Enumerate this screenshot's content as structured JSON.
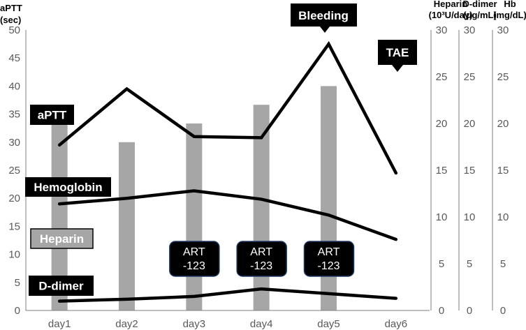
{
  "chart_data": {
    "type": "bar+line",
    "categories": [
      "day1",
      "day2",
      "day3",
      "day4",
      "day5",
      "day6"
    ],
    "axes": {
      "left": {
        "label_line1": "aPTT",
        "label_line2": "(sec)",
        "range": [
          0,
          50
        ],
        "ticks": [
          "0",
          "5",
          "10",
          "15",
          "20",
          "25",
          "30",
          "35",
          "40",
          "45",
          "50"
        ]
      },
      "right1": {
        "label_line1": "Heparin",
        "label_line2": "(10³U/day)",
        "range": [
          0,
          30
        ],
        "ticks": [
          "0",
          "5",
          "10",
          "15",
          "20",
          "25",
          "30"
        ]
      },
      "right2": {
        "label_line1": "D-dimer",
        "label_line2": "(μg/mL)",
        "range": [
          0,
          30
        ],
        "ticks": [
          "0",
          "5",
          "10",
          "15",
          "20",
          "25",
          "30"
        ]
      },
      "right3": {
        "label_line1": "Hb",
        "label_line2": "(mg/dL)",
        "range": [
          0,
          30
        ],
        "ticks": [
          "0",
          "5",
          "10",
          "15",
          "20",
          "25",
          "30"
        ]
      }
    },
    "series": [
      {
        "name": "Heparin",
        "kind": "bar",
        "axis": "right1",
        "values": [
          20.3,
          18,
          20,
          22,
          24,
          null
        ]
      },
      {
        "name": "aPTT",
        "kind": "line",
        "axis": "left",
        "values": [
          29.5,
          39.5,
          31,
          30.8,
          47.5,
          24.5
        ]
      },
      {
        "name": "Hemoglobin",
        "kind": "line",
        "axis": "right3",
        "values": [
          11.4,
          12,
          12.8,
          11.9,
          10.2,
          7.6
        ]
      },
      {
        "name": "D-dimer",
        "kind": "line",
        "axis": "right2",
        "values": [
          1,
          1.2,
          1.5,
          2.3,
          1.8,
          1.3
        ]
      }
    ],
    "annotations": {
      "bleeding": "Bleeding",
      "tae": "TAE",
      "art": [
        "ART\n-123",
        "ART\n-123",
        "ART\n-123"
      ]
    },
    "colors": {
      "bar": "#a6a6a6",
      "line": "#000000",
      "box": "#000000",
      "axis": "#7f7f7f",
      "tick": "#595959",
      "art_border": "#1f3864"
    }
  }
}
